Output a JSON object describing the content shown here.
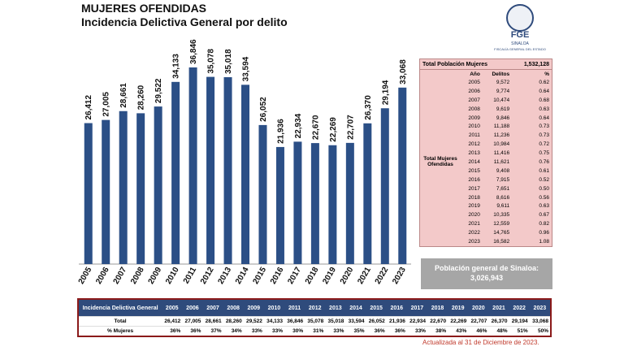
{
  "chart_data": {
    "type": "bar",
    "title": "MUJERES OFENDIDAS",
    "subtitle": "Incidencia Delictiva General por delito",
    "categories": [
      "2005",
      "2006",
      "2007",
      "2008",
      "2009",
      "2010",
      "2011",
      "2012",
      "2013",
      "2014",
      "2015",
      "2016",
      "2017",
      "2018",
      "2019",
      "2020",
      "2021",
      "2022",
      "2023"
    ],
    "values": [
      26412,
      27005,
      28661,
      28260,
      29522,
      34133,
      36846,
      35078,
      35018,
      33594,
      26052,
      21936,
      22934,
      22670,
      22269,
      22707,
      26370,
      29194,
      33068
    ],
    "value_labels": [
      "26,412",
      "27,005",
      "28,661",
      "28,260",
      "29,522",
      "34,133",
      "36,846",
      "35,078",
      "35,018",
      "33,594",
      "26,052",
      "21,936",
      "22,934",
      "22,670",
      "22,269",
      "22,707",
      "26,370",
      "29,194",
      "33,068"
    ],
    "color": "#2b4f86"
  },
  "logo": {
    "acronym": "FGE",
    "state": "SINALOA",
    "name": "FISCALÍA GENERAL DEL ESTADO"
  },
  "side_table": {
    "title": "Total Población Mujeres",
    "total": "1,532,128",
    "columns": [
      "Año",
      "Delitos",
      "%"
    ],
    "group_label": "Total Mujeres Ofendidas",
    "rows": [
      [
        "2005",
        "9,572",
        "0.62"
      ],
      [
        "2006",
        "9,774",
        "0.64"
      ],
      [
        "2007",
        "10,474",
        "0.68"
      ],
      [
        "2008",
        "9,619",
        "0.63"
      ],
      [
        "2009",
        "9,846",
        "0.64"
      ],
      [
        "2010",
        "11,188",
        "0.73"
      ],
      [
        "2011",
        "11,236",
        "0.73"
      ],
      [
        "2012",
        "10,984",
        "0.72"
      ],
      [
        "2013",
        "11,416",
        "0.75"
      ],
      [
        "2014",
        "11,621",
        "0.76"
      ],
      [
        "2015",
        "9,408",
        "0.61"
      ],
      [
        "2016",
        "7,915",
        "0.52"
      ],
      [
        "2017",
        "7,651",
        "0.50"
      ],
      [
        "2018",
        "8,616",
        "0.56"
      ],
      [
        "2019",
        "9,611",
        "0.63"
      ],
      [
        "2020",
        "10,335",
        "0.67"
      ],
      [
        "2021",
        "12,559",
        "0.82"
      ],
      [
        "2022",
        "14,765",
        "0.96"
      ],
      [
        "2023",
        "16,582",
        "1.08"
      ]
    ]
  },
  "population": {
    "label": "Población general de Sinaloa:",
    "value": "3,026,943"
  },
  "bottom_table": {
    "columns": [
      "Incidencia Delictiva General",
      "2005",
      "2006",
      "2007",
      "2008",
      "2009",
      "2010",
      "2011",
      "2012",
      "2013",
      "2014",
      "2015",
      "2016",
      "2017",
      "2018",
      "2019",
      "2020",
      "2021",
      "2022",
      "2023"
    ],
    "rows": [
      [
        "Total",
        "26,412",
        "27,005",
        "28,661",
        "28,260",
        "29,522",
        "34,133",
        "36,846",
        "35,078",
        "35,018",
        "33,594",
        "26,052",
        "21,936",
        "22,934",
        "22,670",
        "22,269",
        "22,707",
        "26,370",
        "29,194",
        "33,068"
      ],
      [
        "% Mujeres",
        "36%",
        "36%",
        "37%",
        "34%",
        "33%",
        "33%",
        "30%",
        "31%",
        "33%",
        "35%",
        "36%",
        "36%",
        "33%",
        "38%",
        "43%",
        "46%",
        "48%",
        "51%",
        "50%"
      ]
    ]
  },
  "footnote": "Actualizada al 31 de Diciembre de 2023."
}
